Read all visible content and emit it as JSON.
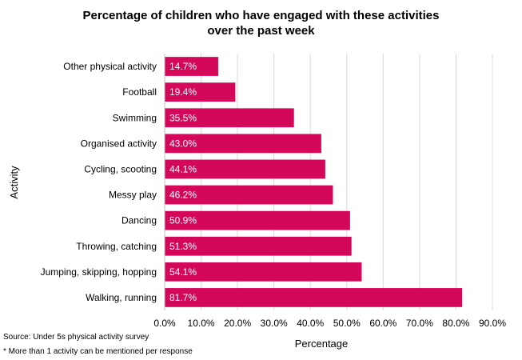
{
  "chart_data": {
    "type": "bar",
    "orientation": "horizontal",
    "title": [
      "Percentage of children who have engaged with these activities",
      "over the past week"
    ],
    "xlabel": "Percentage",
    "ylabel": "Activity",
    "categories": [
      "Other physical activity",
      "Football",
      "Swimming",
      "Organised activity",
      "Cycling, scooting",
      "Messy play",
      "Dancing",
      "Throwing, catching",
      "Jumping, skipping, hopping",
      "Walking, running"
    ],
    "values": [
      14.7,
      19.4,
      35.5,
      43.0,
      44.1,
      46.2,
      50.9,
      51.3,
      54.1,
      81.7
    ],
    "data_labels": [
      "14.7%",
      "19.4%",
      "35.5%",
      "43.0%",
      "44.1%",
      "46.2%",
      "50.9%",
      "51.3%",
      "54.1%",
      "81.7%"
    ],
    "xlim": [
      0,
      90
    ],
    "xticks": [
      0,
      10,
      20,
      30,
      40,
      50,
      60,
      70,
      80,
      90
    ],
    "xtick_labels": [
      "0.0%",
      "10.0%",
      "20.0%",
      "30.0%",
      "40.0%",
      "50.0%",
      "60.0%",
      "70.0%",
      "80.0%",
      "90.0%"
    ],
    "grid": true,
    "bar_color": "#d4085a",
    "grid_color": "#d9d9d9"
  },
  "footnotes": {
    "source": "Source: Under 5s physical activity survey",
    "note": "* More than 1 activity can be mentioned per response"
  }
}
